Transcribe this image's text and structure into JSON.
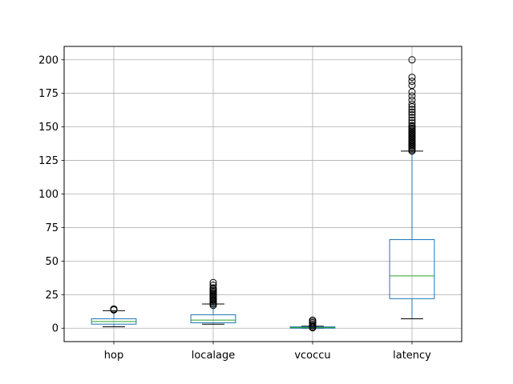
{
  "chart_data": {
    "type": "box",
    "title": "",
    "xlabel": "",
    "ylabel": "",
    "categories": [
      "hop",
      "localage",
      "vcoccu",
      "latency"
    ],
    "ylim": [
      -10,
      210
    ],
    "yticks": [
      0,
      25,
      50,
      75,
      100,
      125,
      150,
      175,
      200
    ],
    "grid": true,
    "box_color": "#1f77b4",
    "median_color": "#2ca02c",
    "boxes": [
      {
        "name": "hop",
        "whisker_low": 1,
        "q1": 3,
        "median": 5,
        "q3": 7,
        "whisker_high": 13,
        "outliers": [
          13.6,
          14,
          14.3
        ]
      },
      {
        "name": "localage",
        "whisker_low": 3,
        "q1": 4,
        "median": 6,
        "q3": 10,
        "whisker_high": 18,
        "outliers": [
          17,
          18,
          19,
          20,
          21,
          22,
          23,
          24,
          25,
          26,
          27,
          28,
          29,
          30,
          32,
          34
        ]
      },
      {
        "name": "vcoccu",
        "whisker_low": 0,
        "q1": 0,
        "median": 0.5,
        "q3": 1,
        "whisker_high": 1.5,
        "outliers": [
          0.3,
          1,
          2,
          3,
          4,
          5,
          6
        ]
      },
      {
        "name": "latency",
        "whisker_low": 7,
        "q1": 22,
        "median": 39,
        "q3": 66,
        "whisker_high": 132,
        "outliers": [
          132,
          133,
          134,
          135,
          136,
          137,
          138,
          139,
          140,
          141,
          142,
          143,
          144,
          145,
          146,
          147,
          148,
          149,
          150,
          151,
          153,
          155,
          157,
          159,
          161,
          163,
          165,
          167,
          170,
          173,
          176,
          181,
          184,
          187,
          200
        ]
      }
    ]
  }
}
